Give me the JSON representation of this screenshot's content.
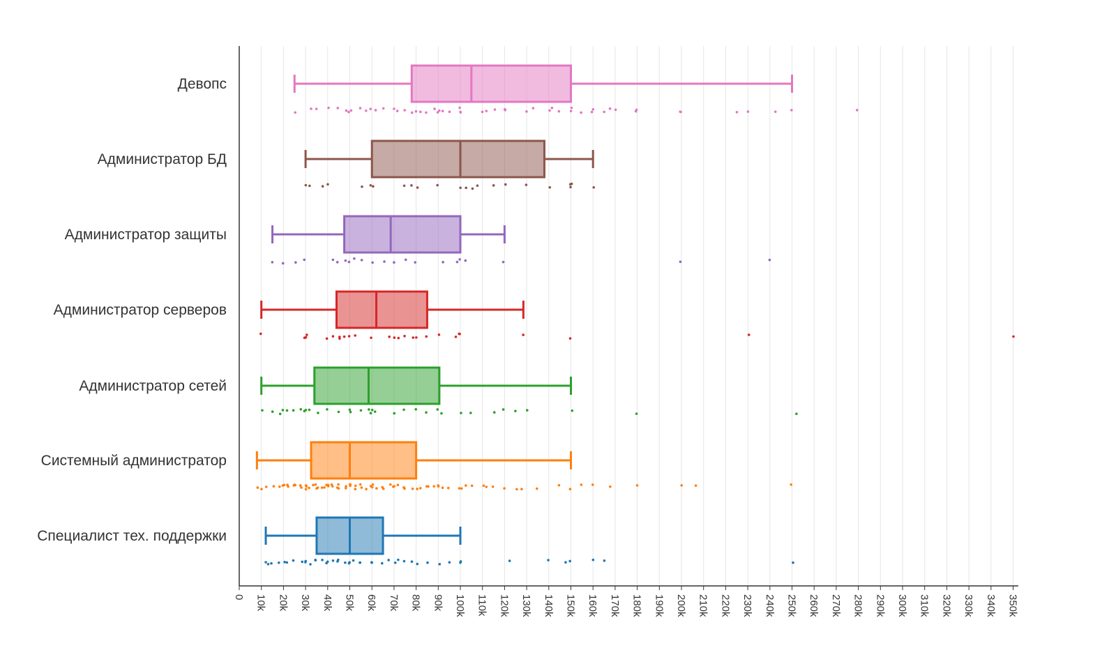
{
  "chart_data": {
    "type": "box",
    "orientation": "horizontal",
    "title": "",
    "xlabel": "",
    "ylabel": "",
    "xlim": [
      0,
      355000
    ],
    "x_ticks": [
      0,
      10000,
      20000,
      30000,
      40000,
      50000,
      60000,
      70000,
      80000,
      90000,
      100000,
      110000,
      120000,
      130000,
      140000,
      150000,
      160000,
      170000,
      180000,
      190000,
      200000,
      210000,
      220000,
      230000,
      240000,
      250000,
      260000,
      270000,
      280000,
      290000,
      300000,
      310000,
      320000,
      330000,
      340000,
      350000
    ],
    "x_tick_labels": [
      "0",
      "10k",
      "20k",
      "30k",
      "40k",
      "50k",
      "60k",
      "70k",
      "80k",
      "90k",
      "100k",
      "110k",
      "120k",
      "130k",
      "140k",
      "150k",
      "160k",
      "170k",
      "180k",
      "190k",
      "200k",
      "210k",
      "220k",
      "230k",
      "240k",
      "250k",
      "260k",
      "270k",
      "280k",
      "290k",
      "300k",
      "310k",
      "320k",
      "330k",
      "340k",
      "350k"
    ],
    "grid": true,
    "legend": "none",
    "series": [
      {
        "name": "Девопс",
        "color": "#e377c2",
        "whisker_low": 25000,
        "q1": 78000,
        "median": 105000,
        "q3": 150000,
        "whisker_high": 250000,
        "points": [
          25000,
          33000,
          35000,
          40000,
          45000,
          48000,
          50000,
          50000,
          55000,
          57000,
          60000,
          62000,
          65000,
          70000,
          72000,
          75000,
          78000,
          80000,
          82000,
          85000,
          88000,
          90000,
          90000,
          92000,
          95000,
          100000,
          100000,
          100000,
          110000,
          112000,
          115000,
          120000,
          120000,
          130000,
          133000,
          140000,
          142000,
          145000,
          150000,
          150000,
          155000,
          160000,
          160000,
          165000,
          168000,
          170000,
          180000,
          180000,
          200000,
          200000,
          225000,
          230000,
          242000,
          250000,
          280000
        ]
      },
      {
        "name": "Администратор БД",
        "color": "#8c564b",
        "whisker_low": 30000,
        "q1": 60000,
        "median": 100000,
        "q3": 138000,
        "whisker_high": 160000,
        "points": [
          30000,
          32000,
          38000,
          40000,
          56000,
          60000,
          60000,
          75000,
          78000,
          80000,
          90000,
          100000,
          102000,
          105000,
          108000,
          115000,
          120000,
          130000,
          140000,
          150000,
          150000,
          150000,
          160000
        ]
      },
      {
        "name": "Администратор защиты",
        "color": "#9467bd",
        "whisker_low": 15000,
        "q1": 47500,
        "median": 68500,
        "q3": 100000,
        "whisker_high": 120000,
        "points": [
          15000,
          20000,
          25000,
          30000,
          42000,
          45000,
          48000,
          50000,
          52000,
          55000,
          60000,
          65000,
          70000,
          75000,
          80000,
          92000,
          98000,
          100000,
          102000,
          120000,
          200000,
          240000
        ]
      },
      {
        "name": "Администратор серверов",
        "color": "#d62728",
        "whisker_low": 10000,
        "q1": 44000,
        "median": 62000,
        "q3": 85000,
        "whisker_high": 128500,
        "points": [
          10000,
          30000,
          30000,
          30000,
          40000,
          42000,
          45000,
          46000,
          48000,
          50000,
          52000,
          60000,
          68000,
          70000,
          72000,
          75000,
          78000,
          80000,
          85000,
          90000,
          98000,
          100000,
          100000,
          128500,
          150000,
          230000,
          350000
        ]
      },
      {
        "name": "Администратор сетей",
        "color": "#2ca02c",
        "whisker_low": 10000,
        "q1": 34000,
        "median": 58500,
        "q3": 90500,
        "whisker_high": 150000,
        "points": [
          10000,
          15000,
          18000,
          20000,
          22000,
          25000,
          28000,
          30000,
          30000,
          32000,
          35000,
          40000,
          45000,
          50000,
          50000,
          55000,
          58000,
          60000,
          60000,
          62000,
          70000,
          75000,
          80000,
          85000,
          90000,
          92000,
          100000,
          105000,
          115000,
          120000,
          125000,
          130000,
          150000,
          180000,
          252000
        ]
      },
      {
        "name": "Системный администратор",
        "color": "#ff7f0e",
        "whisker_low": 8000,
        "q1": 32500,
        "median": 50000,
        "q3": 80000,
        "whisker_high": 150000,
        "points": [
          8000,
          10000,
          12000,
          15000,
          18000,
          20000,
          20000,
          22000,
          22000,
          25000,
          25000,
          25000,
          28000,
          28000,
          30000,
          30000,
          30000,
          32000,
          33000,
          35000,
          35000,
          35000,
          38000,
          38000,
          40000,
          40000,
          40000,
          42000,
          42000,
          45000,
          45000,
          45000,
          48000,
          48000,
          50000,
          50000,
          50000,
          52000,
          52000,
          55000,
          55000,
          58000,
          60000,
          60000,
          60000,
          62000,
          65000,
          65000,
          68000,
          70000,
          70000,
          72000,
          75000,
          75000,
          78000,
          80000,
          82000,
          85000,
          85000,
          88000,
          90000,
          90000,
          92000,
          95000,
          100000,
          100000,
          102000,
          105000,
          110000,
          112000,
          115000,
          120000,
          125000,
          128000,
          135000,
          145000,
          150000,
          155000,
          160000,
          168000,
          180000,
          200000,
          207000,
          250000
        ]
      },
      {
        "name": "Специалист тех. поддержки",
        "color": "#1f77b4",
        "whisker_low": 12000,
        "q1": 35000,
        "median": 50000,
        "q3": 65000,
        "whisker_high": 100000,
        "points": [
          12000,
          13000,
          15000,
          18000,
          20000,
          22000,
          25000,
          28000,
          30000,
          30000,
          32000,
          35000,
          35000,
          38000,
          40000,
          40000,
          42000,
          45000,
          45000,
          48000,
          50000,
          50000,
          52000,
          55000,
          55000,
          60000,
          60000,
          65000,
          68000,
          70000,
          72000,
          75000,
          78000,
          80000,
          85000,
          90000,
          95000,
          100000,
          100000,
          122000,
          140000,
          147000,
          150000,
          160000,
          165000,
          250000
        ]
      }
    ]
  }
}
